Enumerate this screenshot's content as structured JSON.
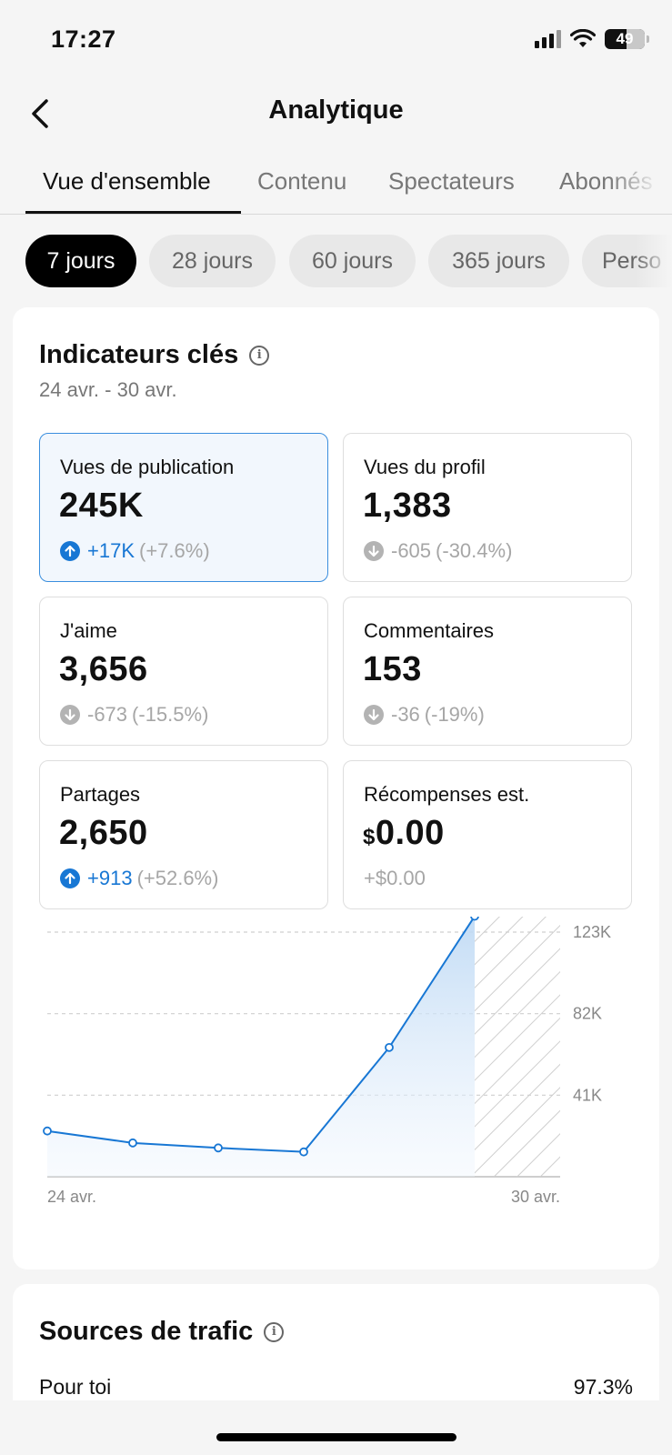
{
  "status_bar": {
    "time": "17:27",
    "battery": "49"
  },
  "nav": {
    "title": "Analytique"
  },
  "tabs": [
    "Vue d'ensemble",
    "Contenu",
    "Spectateurs",
    "Abonnés"
  ],
  "periods": [
    "7 jours",
    "28 jours",
    "60 jours",
    "365 jours",
    "Perso"
  ],
  "key_metrics": {
    "title": "Indicateurs clés",
    "date_range": "24 avr. - 30 avr.",
    "items": [
      {
        "label": "Vues de publication",
        "value": "245K",
        "delta": "+17K",
        "pct": "(+7.6%)",
        "trend": "up",
        "selected": true
      },
      {
        "label": "Vues du profil",
        "value": "1,383",
        "delta": "-605",
        "pct": "(-30.4%)",
        "trend": "down"
      },
      {
        "label": "J'aime",
        "value": "3,656",
        "delta": "-673",
        "pct": "(-15.5%)",
        "trend": "down"
      },
      {
        "label": "Commentaires",
        "value": "153",
        "delta": "-36",
        "pct": "(-19%)",
        "trend": "down"
      },
      {
        "label": "Partages",
        "value": "2,650",
        "delta": "+913",
        "pct": "(+52.6%)",
        "trend": "up"
      },
      {
        "label": "Récompenses est.",
        "currency": "$",
        "value": "0.00",
        "delta": "+$0.00",
        "pct": "",
        "trend": "none"
      }
    ]
  },
  "chart_data": {
    "type": "area",
    "x": [
      "24 avr.",
      "25 avr.",
      "26 avr.",
      "27 avr.",
      "28 avr.",
      "29 avr.",
      "30 avr."
    ],
    "values": [
      23000,
      17000,
      14500,
      12500,
      65000,
      131000,
      null
    ],
    "x_tick_labels": [
      "24 avr.",
      "30 avr."
    ],
    "y_ticks": [
      "41K",
      "82K",
      "123K"
    ],
    "y_tick_values": [
      41000,
      82000,
      123000
    ],
    "ylim": [
      0,
      123000
    ],
    "grid": true,
    "line_color": "#1877d4",
    "hatched_last_day": true
  },
  "traffic": {
    "title": "Sources de trafic",
    "rows": [
      {
        "label": "Pour toi",
        "value": "97.3%"
      }
    ]
  }
}
